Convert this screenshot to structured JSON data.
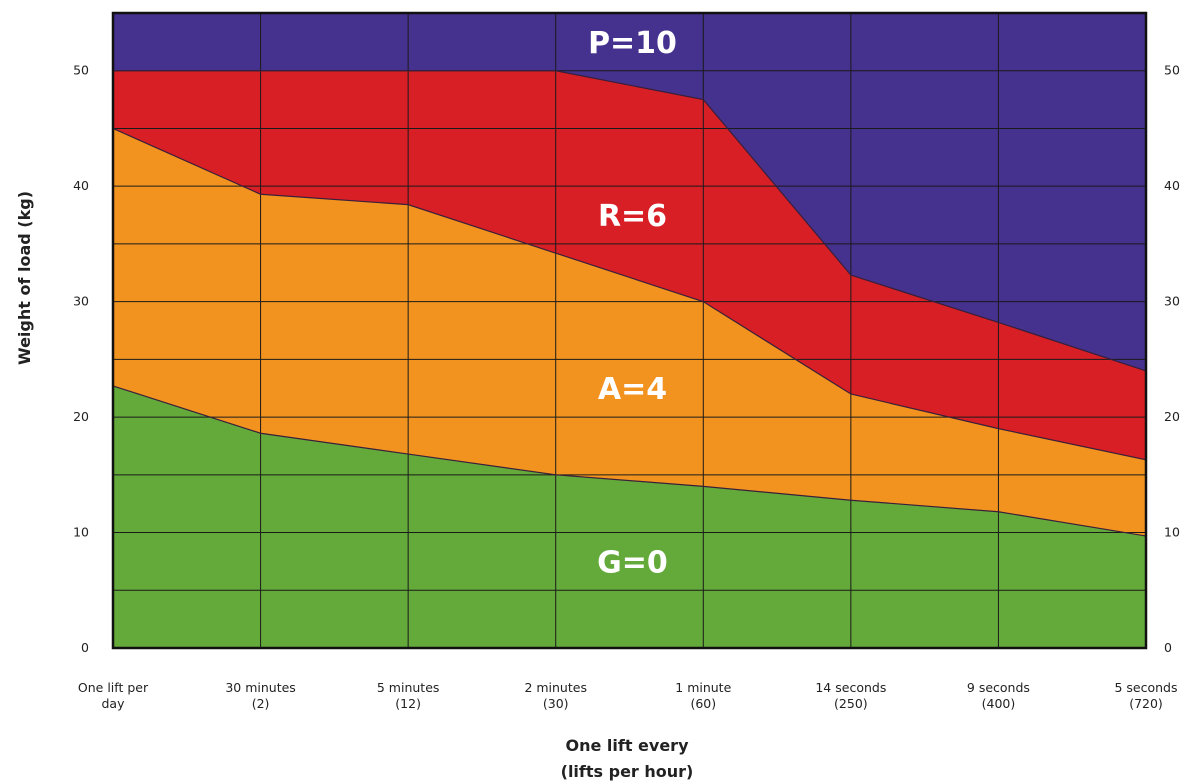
{
  "chart_data": {
    "type": "area",
    "title": "",
    "xlabel": "One lift every",
    "xlabel_sub": "(lifts per hour)",
    "ylabel": "Weight of load (kg)",
    "ylim": [
      0,
      55
    ],
    "y_ticks": [
      0,
      10,
      20,
      30,
      40,
      50
    ],
    "y_ticks_right": [
      0,
      10,
      20,
      30,
      40,
      50
    ],
    "grid": true,
    "categories": [
      {
        "line1": "One lift per",
        "line2": "day"
      },
      {
        "line1": "30 minutes",
        "line2": "(2)"
      },
      {
        "line1": "5 minutes",
        "line2": "(12)"
      },
      {
        "line1": "2 minutes",
        "line2": "(30)"
      },
      {
        "line1": "1 minute",
        "line2": "(60)"
      },
      {
        "line1": "14 seconds",
        "line2": "(250)"
      },
      {
        "line1": "9 seconds",
        "line2": "(400)"
      },
      {
        "line1": "5 seconds",
        "line2": "(720)"
      }
    ],
    "boundaries": {
      "green_upper": [
        22.7,
        18.6,
        16.8,
        15.0,
        14.0,
        12.8,
        11.8,
        9.7
      ],
      "orange_upper": [
        45.0,
        39.3,
        38.4,
        34.2,
        30.0,
        22.0,
        19.0,
        16.3
      ],
      "red_upper": [
        50.0,
        50.0,
        50.0,
        50.0,
        47.5,
        32.3,
        28.2,
        24.0
      ]
    },
    "bands": [
      {
        "label": "G=0",
        "color": "#64aa3a",
        "label_value": 7.5
      },
      {
        "label": "A=4",
        "color": "#f3931f",
        "label_value": 22.5
      },
      {
        "label": "R=6",
        "color": "#d81f26",
        "label_value": 37.5
      },
      {
        "label": "P=10",
        "color": "#45318e",
        "label_value": 52.5
      }
    ],
    "gridline_color": "#1a1a1a"
  }
}
